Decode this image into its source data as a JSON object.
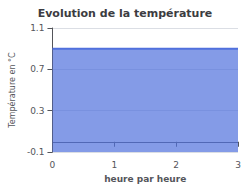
{
  "chart_data": {
    "type": "area",
    "title": "Evolution de la température",
    "xlabel": "heure par heure",
    "ylabel": "Température en °C",
    "x": [
      0,
      3
    ],
    "values": [
      0.9,
      0.9
    ],
    "xlim": [
      0,
      3
    ],
    "ylim": [
      -0.1,
      1.1
    ],
    "xticks": [
      0,
      1,
      2,
      3
    ],
    "yticks": [
      -0.1,
      0.3,
      0.7,
      1.1
    ],
    "grid": true
  }
}
